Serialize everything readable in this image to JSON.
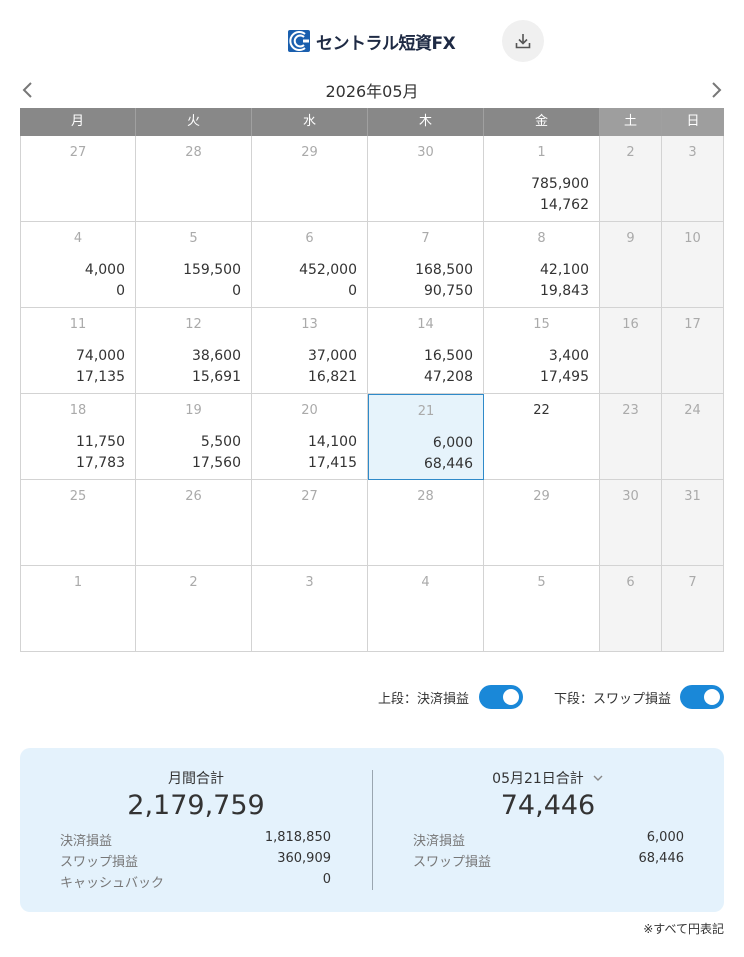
{
  "header": {
    "logo_text": "セントラル短資FX",
    "download_icon": "download-icon"
  },
  "calendar": {
    "month_label": "2026年05月",
    "prev_icon": "chevron-left-icon",
    "next_icon": "chevron-right-icon",
    "weekdays": [
      "月",
      "火",
      "水",
      "木",
      "金",
      "土",
      "日"
    ],
    "weeks": [
      [
        {
          "day": "27",
          "v1": "",
          "v2": ""
        },
        {
          "day": "28",
          "v1": "",
          "v2": ""
        },
        {
          "day": "29",
          "v1": "",
          "v2": ""
        },
        {
          "day": "30",
          "v1": "",
          "v2": ""
        },
        {
          "day": "1",
          "v1": "785,900",
          "v2": "14,762"
        },
        {
          "day": "2",
          "v1": "",
          "v2": ""
        },
        {
          "day": "3",
          "v1": "",
          "v2": ""
        }
      ],
      [
        {
          "day": "4",
          "v1": "4,000",
          "v2": "0"
        },
        {
          "day": "5",
          "v1": "159,500",
          "v2": "0"
        },
        {
          "day": "6",
          "v1": "452,000",
          "v2": "0"
        },
        {
          "day": "7",
          "v1": "168,500",
          "v2": "90,750"
        },
        {
          "day": "8",
          "v1": "42,100",
          "v2": "19,843"
        },
        {
          "day": "9",
          "v1": "",
          "v2": ""
        },
        {
          "day": "10",
          "v1": "",
          "v2": ""
        }
      ],
      [
        {
          "day": "11",
          "v1": "74,000",
          "v2": "17,135"
        },
        {
          "day": "12",
          "v1": "38,600",
          "v2": "15,691"
        },
        {
          "day": "13",
          "v1": "37,000",
          "v2": "16,821"
        },
        {
          "day": "14",
          "v1": "16,500",
          "v2": "47,208"
        },
        {
          "day": "15",
          "v1": "3,400",
          "v2": "17,495"
        },
        {
          "day": "16",
          "v1": "",
          "v2": ""
        },
        {
          "day": "17",
          "v1": "",
          "v2": ""
        }
      ],
      [
        {
          "day": "18",
          "v1": "11,750",
          "v2": "17,783"
        },
        {
          "day": "19",
          "v1": "5,500",
          "v2": "17,560"
        },
        {
          "day": "20",
          "v1": "14,100",
          "v2": "17,415"
        },
        {
          "day": "21",
          "v1": "6,000",
          "v2": "68,446"
        },
        {
          "day": "22",
          "v1": "",
          "v2": ""
        },
        {
          "day": "23",
          "v1": "",
          "v2": ""
        },
        {
          "day": "24",
          "v1": "",
          "v2": ""
        }
      ],
      [
        {
          "day": "25",
          "v1": "",
          "v2": ""
        },
        {
          "day": "26",
          "v1": "",
          "v2": ""
        },
        {
          "day": "27",
          "v1": "",
          "v2": ""
        },
        {
          "day": "28",
          "v1": "",
          "v2": ""
        },
        {
          "day": "29",
          "v1": "",
          "v2": ""
        },
        {
          "day": "30",
          "v1": "",
          "v2": ""
        },
        {
          "day": "31",
          "v1": "",
          "v2": ""
        }
      ],
      [
        {
          "day": "1",
          "v1": "",
          "v2": ""
        },
        {
          "day": "2",
          "v1": "",
          "v2": ""
        },
        {
          "day": "3",
          "v1": "",
          "v2": ""
        },
        {
          "day": "4",
          "v1": "",
          "v2": ""
        },
        {
          "day": "5",
          "v1": "",
          "v2": ""
        },
        {
          "day": "6",
          "v1": "",
          "v2": ""
        },
        {
          "day": "7",
          "v1": "",
          "v2": ""
        }
      ]
    ]
  },
  "toggles": {
    "upper_label": "上段：決済損益",
    "upper_on": true,
    "lower_label": "下段：スワップ損益",
    "lower_on": true
  },
  "summary": {
    "monthly": {
      "title": "月間合計",
      "total": "2,179,759",
      "rows": [
        {
          "label": "決済損益",
          "value": "1,818,850"
        },
        {
          "label": "スワップ損益",
          "value": "360,909"
        },
        {
          "label": "キャッシュバック",
          "value": "0"
        }
      ]
    },
    "daily": {
      "title": "05月21日合計",
      "dropdown_icon": "chevron-down-icon",
      "total": "74,446",
      "rows": [
        {
          "label": "決済損益",
          "value": "6,000"
        },
        {
          "label": "スワップ損益",
          "value": "68,446"
        }
      ]
    }
  },
  "footnote": "※すべて円表記",
  "colors": {
    "header_bg": "#888888",
    "weekend_bg": "#f4f4f4",
    "today_bg": "#e6f3fb",
    "today_border": "#2f8ac9",
    "toggle_on": "#1a88d8",
    "summary_bg": "#e4f2fc",
    "brand_blue": "#1a5fae"
  }
}
